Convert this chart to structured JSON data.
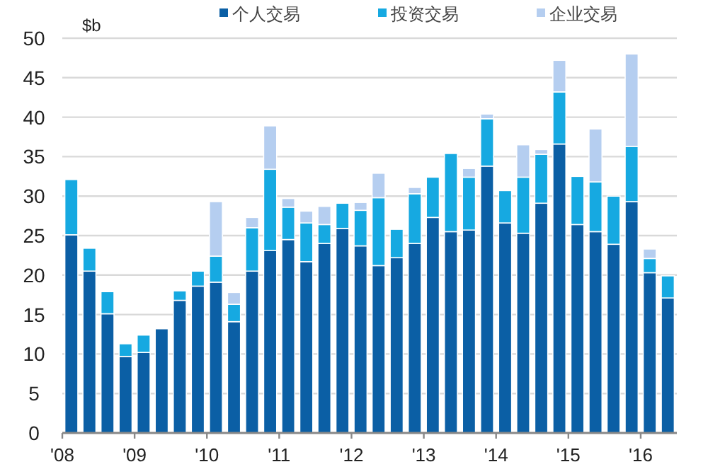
{
  "chart_data": {
    "type": "bar",
    "stacked": true,
    "ylabel": "$b",
    "categories": [
      "'08",
      null,
      null,
      null,
      "'09",
      null,
      null,
      null,
      "'10",
      null,
      null,
      null,
      "'11",
      null,
      null,
      null,
      "'12",
      null,
      null,
      null,
      "'13",
      null,
      null,
      null,
      "'14",
      null,
      null,
      null,
      "'15",
      null,
      null,
      null,
      "'16",
      null
    ],
    "series": [
      {
        "name": "个人交易",
        "color": "#0b5fa5",
        "values": [
          25.1,
          20.5,
          15.1,
          9.7,
          10.2,
          13.2,
          16.8,
          18.6,
          19.1,
          14.1,
          20.5,
          23.1,
          24.5,
          21.7,
          24.0,
          25.9,
          23.7,
          21.2,
          22.2,
          24.0,
          27.3,
          25.5,
          25.7,
          33.8,
          26.6,
          25.3,
          29.1,
          36.6,
          26.4,
          25.5,
          23.9,
          29.3,
          20.3,
          17.1
        ]
      },
      {
        "name": "投资交易",
        "color": "#16a9e1",
        "values": [
          7.0,
          2.9,
          2.8,
          1.6,
          2.2,
          0,
          1.2,
          1.9,
          3.3,
          2.2,
          5.5,
          10.3,
          4.1,
          4.9,
          2.4,
          3.2,
          4.5,
          8.6,
          3.6,
          6.3,
          5.1,
          9.9,
          6.7,
          6.0,
          4.1,
          7.1,
          6.2,
          6.6,
          6.1,
          6.3,
          6.1,
          7.0,
          1.8,
          2.8
        ]
      },
      {
        "name": "企业交易",
        "color": "#b5cef0",
        "values": [
          0,
          0,
          0,
          0,
          0,
          0,
          0,
          0,
          6.9,
          1.5,
          1.3,
          5.5,
          1.1,
          1.5,
          2.3,
          0,
          1.0,
          3.1,
          0,
          0.8,
          0,
          0,
          1.1,
          0.6,
          0,
          4.1,
          0.6,
          4.0,
          0,
          6.7,
          0,
          11.7,
          1.2,
          0
        ]
      }
    ],
    "ylim": [
      0,
      50
    ],
    "yticks": [
      0,
      5,
      10,
      15,
      20,
      25,
      30,
      35,
      40,
      45,
      50
    ],
    "grid": "y",
    "legend": "top"
  }
}
